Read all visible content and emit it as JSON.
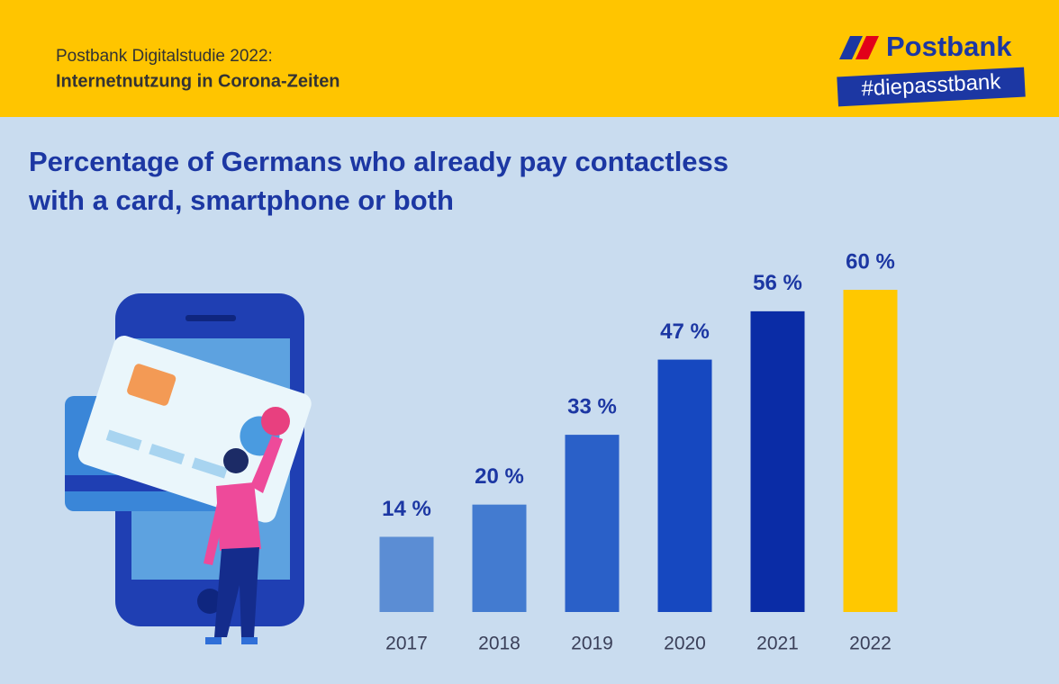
{
  "header": {
    "study": "Postbank Digitalstudie 2022:",
    "topic": "Internetnutzung in Corona-Zeiten",
    "brand": "Postbank",
    "hashtag": "#diepasstbank"
  },
  "chart_data": {
    "type": "bar",
    "title": "Percentage of Germans who already pay contactless with a card, smartphone or both",
    "categories": [
      "2017",
      "2018",
      "2019",
      "2020",
      "2021",
      "2022"
    ],
    "values": [
      14,
      20,
      33,
      47,
      56,
      60
    ],
    "value_labels": [
      "14 %",
      "20 %",
      "33 %",
      "47 %",
      "56 %",
      "60 %"
    ],
    "colors": [
      "#5b8dd4",
      "#437bd0",
      "#2a60c8",
      "#1648c0",
      "#0a2ca6",
      "#ffc800"
    ]
  }
}
